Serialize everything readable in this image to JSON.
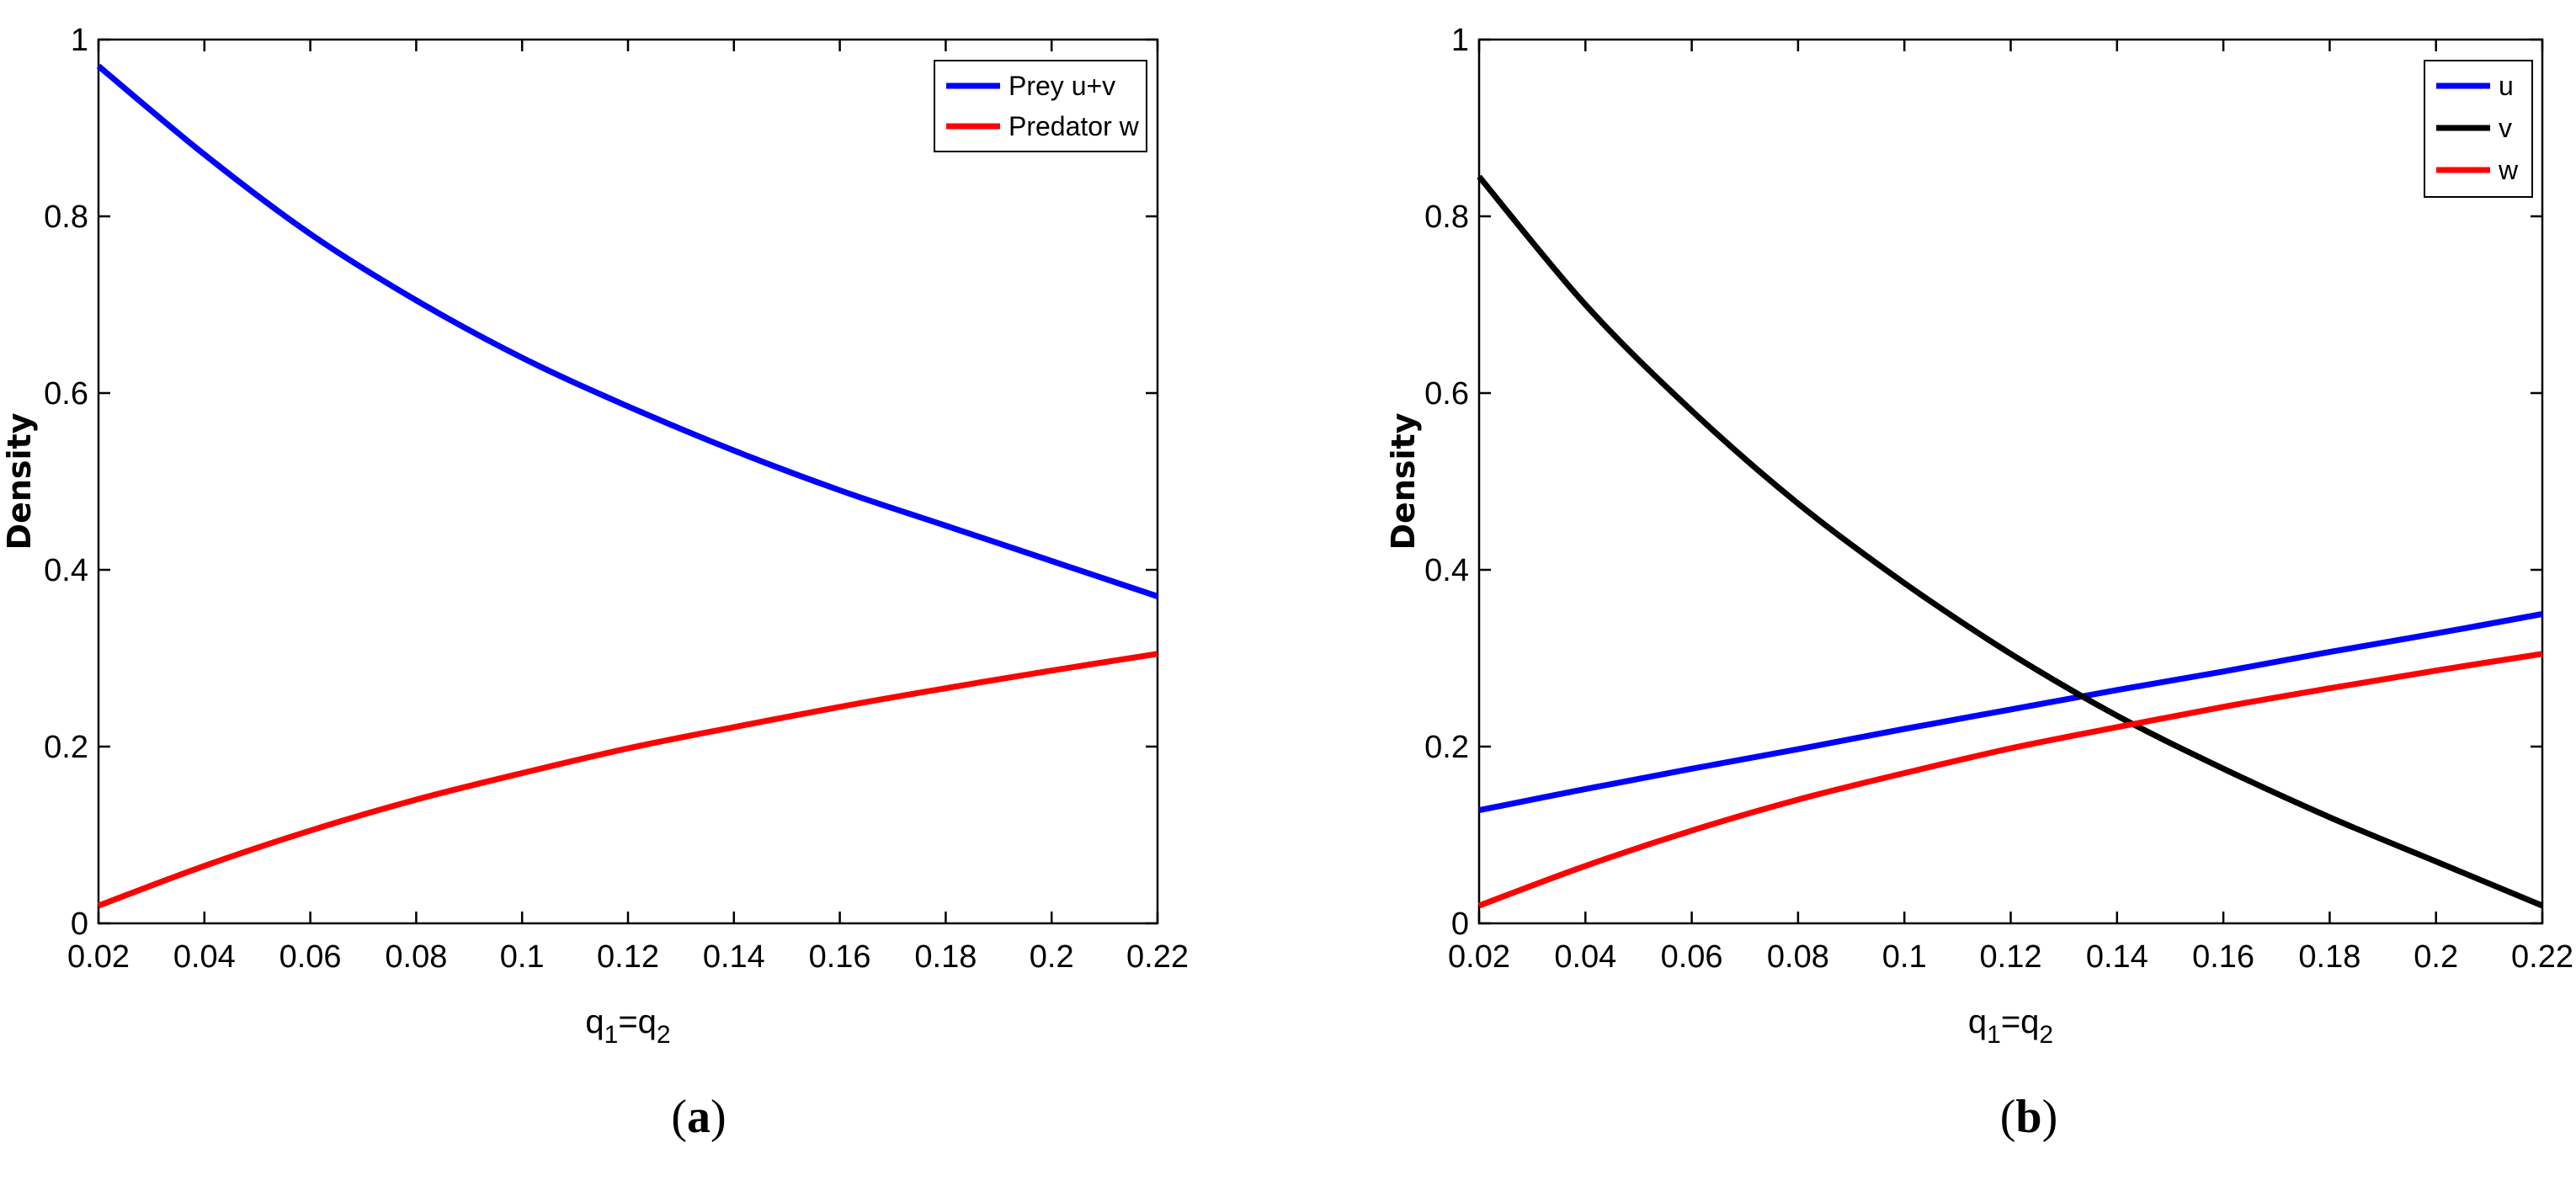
{
  "chart_data": [
    {
      "type": "line",
      "caption": {
        "open": "(",
        "letter": "a",
        "close": ")"
      },
      "title": "",
      "xlabel": {
        "base": "q",
        "sub1": "1",
        "eq": "=q",
        "sub2": "2"
      },
      "ylabel": "Density",
      "xlim": [
        0.02,
        0.22
      ],
      "ylim": [
        0,
        1
      ],
      "x_ticks": [
        "0.02",
        "0.04",
        "0.06",
        "0.08",
        "0.1",
        "0.12",
        "0.14",
        "0.16",
        "0.18",
        "0.2",
        "0.22"
      ],
      "y_ticks": [
        "0",
        "0.2",
        "0.4",
        "0.6",
        "0.8",
        "1"
      ],
      "x": [
        0.02,
        0.04,
        0.06,
        0.08,
        0.1,
        0.12,
        0.14,
        0.16,
        0.18,
        0.2,
        0.22
      ],
      "series": [
        {
          "name": "Prey u+v",
          "color": "#0000ff",
          "values": [
            0.97,
            0.87,
            0.78,
            0.705,
            0.64,
            0.585,
            0.535,
            0.49,
            0.45,
            0.41,
            0.37
          ]
        },
        {
          "name": "Predator w",
          "color": "#ff0000",
          "values": [
            0.02,
            0.065,
            0.105,
            0.14,
            0.17,
            0.198,
            0.222,
            0.245,
            0.266,
            0.286,
            0.305
          ]
        }
      ],
      "legend": "top-right"
    },
    {
      "type": "line",
      "caption": {
        "open": "(",
        "letter": "b",
        "close": ")"
      },
      "title": "",
      "xlabel": {
        "base": "q",
        "sub1": "1",
        "eq": "=q",
        "sub2": "2"
      },
      "ylabel": "Density",
      "xlim": [
        0.02,
        0.22
      ],
      "ylim": [
        0,
        1
      ],
      "x_ticks": [
        "0.02",
        "0.04",
        "0.06",
        "0.08",
        "0.1",
        "0.12",
        "0.14",
        "0.16",
        "0.18",
        "0.2",
        "0.22"
      ],
      "y_ticks": [
        "0",
        "0.2",
        "0.4",
        "0.6",
        "0.8",
        "1"
      ],
      "x": [
        0.02,
        0.04,
        0.06,
        0.08,
        0.1,
        0.12,
        0.14,
        0.16,
        0.18,
        0.2,
        0.22
      ],
      "series": [
        {
          "name": "u",
          "color": "#0000ff",
          "values": [
            0.128,
            0.152,
            0.175,
            0.197,
            0.22,
            0.242,
            0.264,
            0.285,
            0.307,
            0.328,
            0.35
          ]
        },
        {
          "name": "v",
          "color": "#000000",
          "values": [
            0.845,
            0.7,
            0.58,
            0.475,
            0.385,
            0.305,
            0.235,
            0.175,
            0.12,
            0.07,
            0.02
          ]
        },
        {
          "name": "w",
          "color": "#ff0000",
          "values": [
            0.02,
            0.065,
            0.105,
            0.14,
            0.17,
            0.198,
            0.222,
            0.245,
            0.266,
            0.286,
            0.305
          ]
        }
      ],
      "legend": "top-right"
    }
  ]
}
